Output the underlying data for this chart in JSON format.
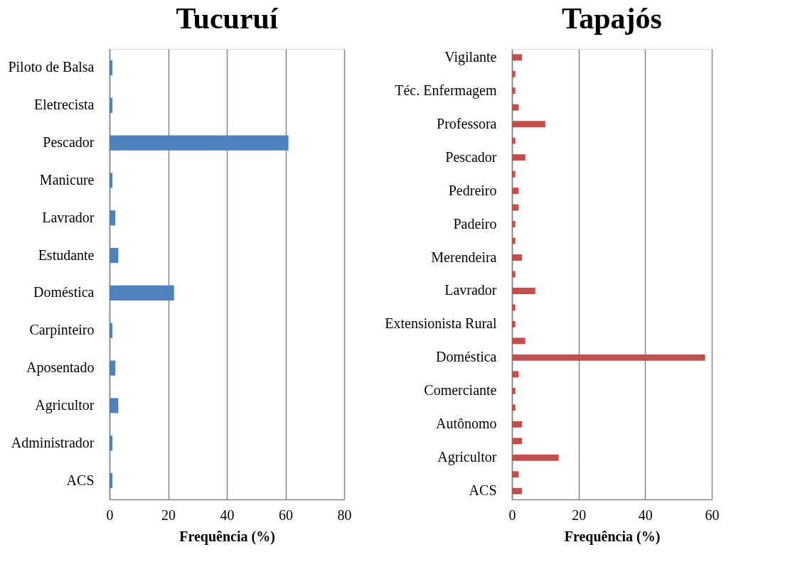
{
  "chart_data": [
    {
      "type": "bar",
      "orientation": "horizontal",
      "title": "Tucuruí",
      "xlabel": "Frequência (%)",
      "categories": [
        "Piloto de Balsa",
        "Eletrecista ",
        "Pescador",
        "Manicure",
        "Lavrador",
        "Estudante",
        "Doméstica",
        "Carpinteiro",
        "Aposentado",
        "Agricultor",
        "Administrador",
        "ACS"
      ],
      "values": [
        1,
        1,
        61,
        1,
        2,
        3,
        22,
        1,
        2,
        3,
        1,
        1
      ],
      "color": "#4f81bd",
      "xlim": [
        0,
        80
      ],
      "xticks": [
        0,
        20,
        40,
        60,
        80
      ],
      "grid": "x"
    },
    {
      "type": "bar",
      "orientation": "horizontal",
      "title": "Tapajós",
      "xlabel": "Frequência (%)",
      "categories": [
        "Vigilante",
        null,
        "Téc. Enfermagem",
        null,
        "Professora ",
        null,
        "Pescador",
        null,
        "Pedreiro",
        null,
        "Padeiro",
        null,
        "Merendeira ",
        null,
        "Lavrador",
        null,
        "Extensionista Rural",
        null,
        "Doméstica",
        null,
        "Comerciante",
        null,
        "Autônomo",
        null,
        "Agricultor",
        null,
        "ACS"
      ],
      "values": [
        3,
        1,
        1,
        2,
        10,
        1,
        4,
        1,
        2,
        2,
        1,
        1,
        3,
        1,
        7,
        1,
        1,
        4,
        58,
        2,
        1,
        1,
        3,
        3,
        14,
        2,
        3
      ],
      "color": "#c0504d",
      "xlim": [
        0,
        60
      ],
      "xticks": [
        0,
        20,
        40,
        60
      ],
      "grid": "x"
    }
  ]
}
